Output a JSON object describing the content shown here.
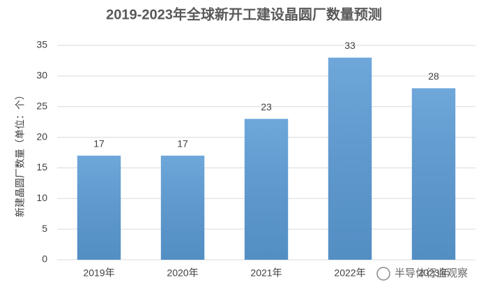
{
  "chart_data": {
    "type": "bar",
    "title": "2019-2023年全球新开工建设晶圆厂数量预测",
    "y_label": "新建晶圆厂数量（单位：个）",
    "categories": [
      "2019年",
      "2020年",
      "2021年",
      "2022年",
      "2023年"
    ],
    "values": [
      17,
      17,
      23,
      33,
      28
    ],
    "color": "#5b9bd5",
    "ylim": [
      0,
      35
    ],
    "yticks": [
      0,
      5,
      10,
      15,
      20,
      25,
      30,
      35
    ],
    "grid": true
  },
  "watermark": "半导体行业观察"
}
